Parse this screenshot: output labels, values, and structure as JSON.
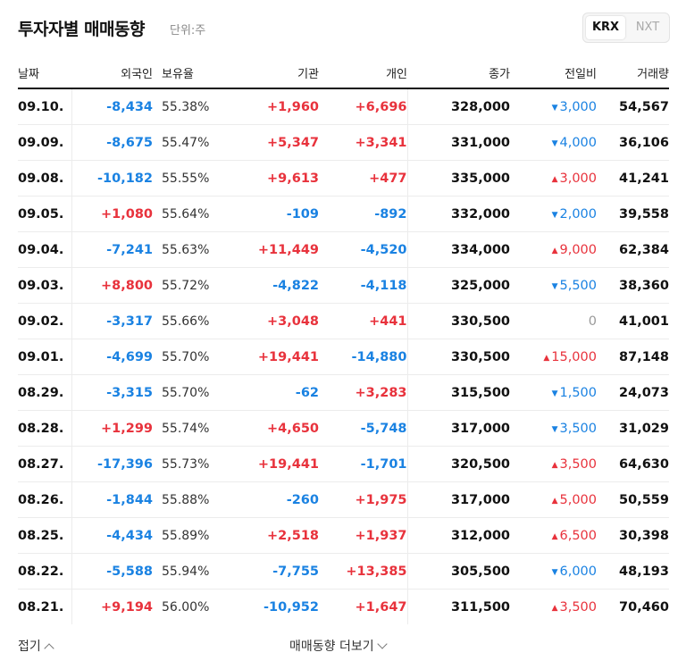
{
  "header": {
    "title": "투자자별 매매동향",
    "unit": "단위:주",
    "exchanges": [
      "KRX",
      "NXT"
    ],
    "active_exchange": "KRX"
  },
  "columns": [
    "날짜",
    "외국인",
    "보유율",
    "기관",
    "개인",
    "종가",
    "전일비",
    "거래량"
  ],
  "rows": [
    {
      "date": "09.10.",
      "foreign": "-8,434",
      "ratio": "55.38%",
      "inst": "+1,960",
      "indiv": "+6,696",
      "close": "328,000",
      "change": "3,000",
      "dir": "down",
      "volume": "54,567"
    },
    {
      "date": "09.09.",
      "foreign": "-8,675",
      "ratio": "55.47%",
      "inst": "+5,347",
      "indiv": "+3,341",
      "close": "331,000",
      "change": "4,000",
      "dir": "down",
      "volume": "36,106"
    },
    {
      "date": "09.08.",
      "foreign": "-10,182",
      "ratio": "55.55%",
      "inst": "+9,613",
      "indiv": "+477",
      "close": "335,000",
      "change": "3,000",
      "dir": "up",
      "volume": "41,241"
    },
    {
      "date": "09.05.",
      "foreign": "+1,080",
      "ratio": "55.64%",
      "inst": "-109",
      "indiv": "-892",
      "close": "332,000",
      "change": "2,000",
      "dir": "down",
      "volume": "39,558"
    },
    {
      "date": "09.04.",
      "foreign": "-7,241",
      "ratio": "55.63%",
      "inst": "+11,449",
      "indiv": "-4,520",
      "close": "334,000",
      "change": "9,000",
      "dir": "up",
      "volume": "62,384"
    },
    {
      "date": "09.03.",
      "foreign": "+8,800",
      "ratio": "55.72%",
      "inst": "-4,822",
      "indiv": "-4,118",
      "close": "325,000",
      "change": "5,500",
      "dir": "down",
      "volume": "38,360"
    },
    {
      "date": "09.02.",
      "foreign": "-3,317",
      "ratio": "55.66%",
      "inst": "+3,048",
      "indiv": "+441",
      "close": "330,500",
      "change": "0",
      "dir": "none",
      "volume": "41,001"
    },
    {
      "date": "09.01.",
      "foreign": "-4,699",
      "ratio": "55.70%",
      "inst": "+19,441",
      "indiv": "-14,880",
      "close": "330,500",
      "change": "15,000",
      "dir": "up",
      "volume": "87,148"
    },
    {
      "date": "08.29.",
      "foreign": "-3,315",
      "ratio": "55.70%",
      "inst": "-62",
      "indiv": "+3,283",
      "close": "315,500",
      "change": "1,500",
      "dir": "down",
      "volume": "24,073"
    },
    {
      "date": "08.28.",
      "foreign": "+1,299",
      "ratio": "55.74%",
      "inst": "+4,650",
      "indiv": "-5,748",
      "close": "317,000",
      "change": "3,500",
      "dir": "down",
      "volume": "31,029"
    },
    {
      "date": "08.27.",
      "foreign": "-17,396",
      "ratio": "55.73%",
      "inst": "+19,441",
      "indiv": "-1,701",
      "close": "320,500",
      "change": "3,500",
      "dir": "up",
      "volume": "64,630"
    },
    {
      "date": "08.26.",
      "foreign": "-1,844",
      "ratio": "55.88%",
      "inst": "-260",
      "indiv": "+1,975",
      "close": "317,000",
      "change": "5,000",
      "dir": "up",
      "volume": "50,559"
    },
    {
      "date": "08.25.",
      "foreign": "-4,434",
      "ratio": "55.89%",
      "inst": "+2,518",
      "indiv": "+1,937",
      "close": "312,000",
      "change": "6,500",
      "dir": "up",
      "volume": "30,398"
    },
    {
      "date": "08.22.",
      "foreign": "-5,588",
      "ratio": "55.94%",
      "inst": "-7,755",
      "indiv": "+13,385",
      "close": "305,500",
      "change": "6,000",
      "dir": "down",
      "volume": "48,193"
    },
    {
      "date": "08.21.",
      "foreign": "+9,194",
      "ratio": "56.00%",
      "inst": "-10,952",
      "indiv": "+1,647",
      "close": "311,500",
      "change": "3,500",
      "dir": "up",
      "volume": "70,460"
    }
  ],
  "footer": {
    "fold_label": "접기",
    "more_label": "매매동향 더보기"
  },
  "colors": {
    "up": "#e8323c",
    "down": "#1a82e2",
    "flat": "#999999"
  }
}
